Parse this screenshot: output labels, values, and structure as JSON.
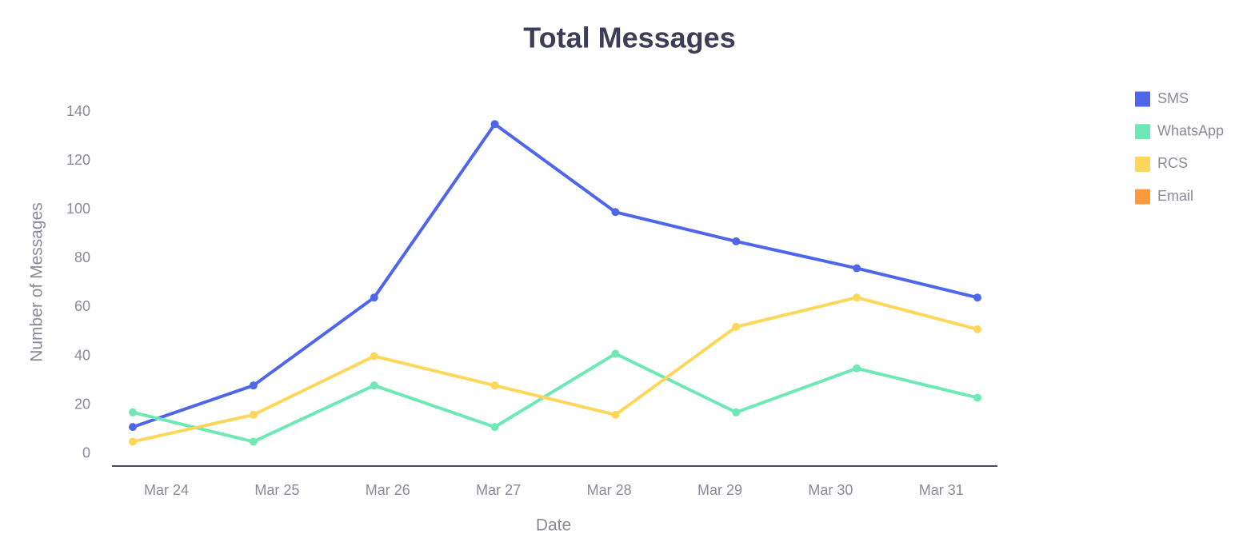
{
  "chart_data": {
    "type": "line",
    "title": "Total Messages",
    "x_label": "Date",
    "y_label": "Number of Messages",
    "categories": [
      "Mar 24",
      "Mar 25",
      "Mar 26",
      "Mar 27",
      "Mar 28",
      "Mar 29",
      "Mar 30",
      "Mar 31"
    ],
    "series": [
      {
        "name": "SMS",
        "color": "#4f66ea",
        "values": [
          11,
          28,
          64,
          135,
          99,
          87,
          76,
          64
        ]
      },
      {
        "name": "WhatsApp",
        "color": "#6ee8b5",
        "values": [
          17,
          5,
          28,
          11,
          41,
          17,
          35,
          23
        ]
      },
      {
        "name": "RCS",
        "color": "#fdd75a",
        "values": [
          5,
          16,
          40,
          28,
          16,
          52,
          64,
          51
        ]
      },
      {
        "name": "Email",
        "color": "#ff9a3c",
        "values": [
          null,
          null,
          null,
          null,
          null,
          null,
          null,
          null
        ]
      }
    ],
    "ylim": [
      -5,
      140
    ],
    "yticks": [
      0,
      20,
      40,
      60,
      80,
      100,
      120,
      140
    ],
    "grid": false,
    "legend": "right"
  }
}
